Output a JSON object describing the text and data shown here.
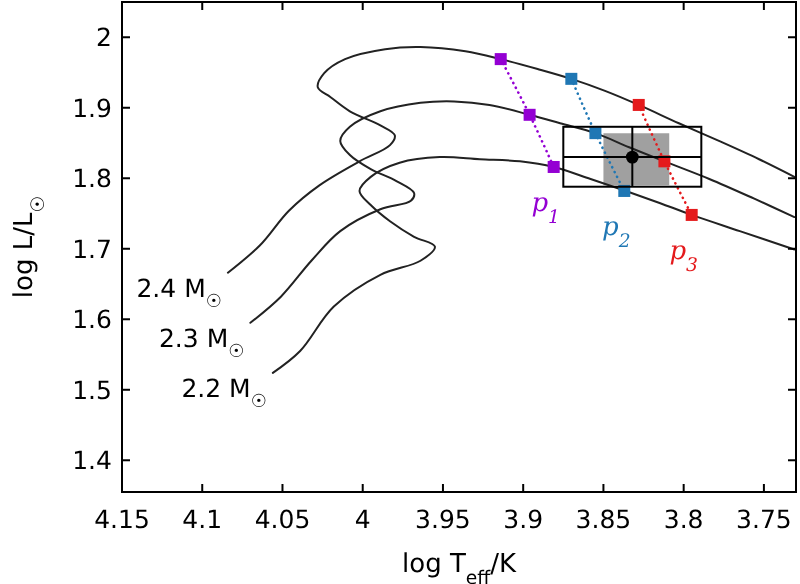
{
  "chart_data": {
    "type": "line",
    "xlabel": "log T$_{eff}$/K",
    "ylabel": "log L/L$_{☉}$",
    "xlim": [
      4.15,
      3.73
    ],
    "xticks": [
      4.15,
      4.1,
      4.05,
      4,
      3.95,
      3.9,
      3.85,
      3.8,
      3.75
    ],
    "ylim": [
      1.355,
      2.05
    ],
    "yticks": [
      1.4,
      1.5,
      1.6,
      1.7,
      1.8,
      1.9,
      2
    ],
    "grid": false,
    "legend": false,
    "series": [
      {
        "color": "#808080",
        "x": [
          3.85,
          3.809
        ],
        "values": [
          null,
          null
        ],
        "lower": [
          1.79,
          1.79
        ],
        "upper": [
          1.864,
          1.864
        ]
      },
      {
        "name": "2.4 M$_{☉}$",
        "color": "#222222",
        "x": [
          4.084,
          4.064,
          4.046,
          4.027,
          4.002,
          3.983,
          3.98,
          3.989,
          4.008,
          4.02,
          4.028,
          4.024,
          4.011,
          3.986,
          3.964,
          3.936,
          3.914,
          3.891,
          3.87,
          3.849,
          3.828,
          3.803,
          3.778,
          3.753,
          3.731
        ],
        "values": [
          1.666,
          1.705,
          1.754,
          1.79,
          1.824,
          1.847,
          1.861,
          1.875,
          1.895,
          1.915,
          1.929,
          1.949,
          1.969,
          1.983,
          1.986,
          1.98,
          1.969,
          1.955,
          1.941,
          1.924,
          1.904,
          1.878,
          1.853,
          1.827,
          1.802
        ]
      },
      {
        "name": "2.3 M$_{☉}$",
        "color": "#222222",
        "x": [
          4.07,
          4.051,
          4.032,
          4.014,
          3.989,
          3.97,
          3.968,
          3.979,
          3.995,
          4.008,
          4.014,
          4.008,
          3.989,
          3.964,
          3.943,
          3.921,
          3.896,
          3.877,
          3.855,
          3.834,
          3.812,
          3.784,
          3.756,
          3.731
        ],
        "values": [
          1.595,
          1.632,
          1.683,
          1.725,
          1.756,
          1.768,
          1.779,
          1.796,
          1.813,
          1.833,
          1.853,
          1.873,
          1.895,
          1.907,
          1.909,
          1.904,
          1.89,
          1.878,
          1.864,
          1.844,
          1.824,
          1.799,
          1.771,
          1.745
        ]
      },
      {
        "name": "2.2 M$_{☉}$",
        "color": "#222222",
        "x": [
          4.056,
          4.039,
          4.018,
          3.989,
          3.964,
          3.955,
          3.968,
          3.983,
          3.995,
          4.002,
          3.995,
          3.977,
          3.952,
          3.927,
          3.902,
          3.881,
          3.858,
          3.836,
          3.815,
          3.795,
          3.765,
          3.731
        ],
        "values": [
          1.524,
          1.555,
          1.618,
          1.663,
          1.683,
          1.703,
          1.717,
          1.739,
          1.762,
          1.782,
          1.802,
          1.822,
          1.83,
          1.827,
          1.824,
          1.816,
          1.799,
          1.782,
          1.765,
          1.748,
          1.725,
          1.699
        ]
      },
      {
        "name": "p$_{1}$",
        "color": "#9400d3",
        "line_style": "dotted",
        "marker": "square",
        "x": [
          3.914,
          3.896,
          3.881
        ],
        "values": [
          1.969,
          1.89,
          1.816
        ]
      },
      {
        "name": "p$_{2}$",
        "color": "#1f77b4",
        "line_style": "dotted",
        "marker": "square",
        "x": [
          3.87,
          3.855,
          3.837
        ],
        "values": [
          1.941,
          1.864,
          1.782
        ]
      },
      {
        "name": "p$_{3}$",
        "color": "#e41a1c",
        "line_style": "dotted",
        "marker": "square",
        "x": [
          3.828,
          3.812,
          3.795
        ],
        "values": [
          1.904,
          1.824,
          1.748
        ]
      },
      {
        "type": "scatter",
        "color": "#000000",
        "marker": "circle",
        "x": [
          3.832
        ],
        "values": [
          1.83
        ],
        "errors": [
          [
            1.788,
            1.873
          ]
        ],
        "xerrors": [
          [
            3.789,
            3.875
          ]
        ]
      }
    ]
  }
}
